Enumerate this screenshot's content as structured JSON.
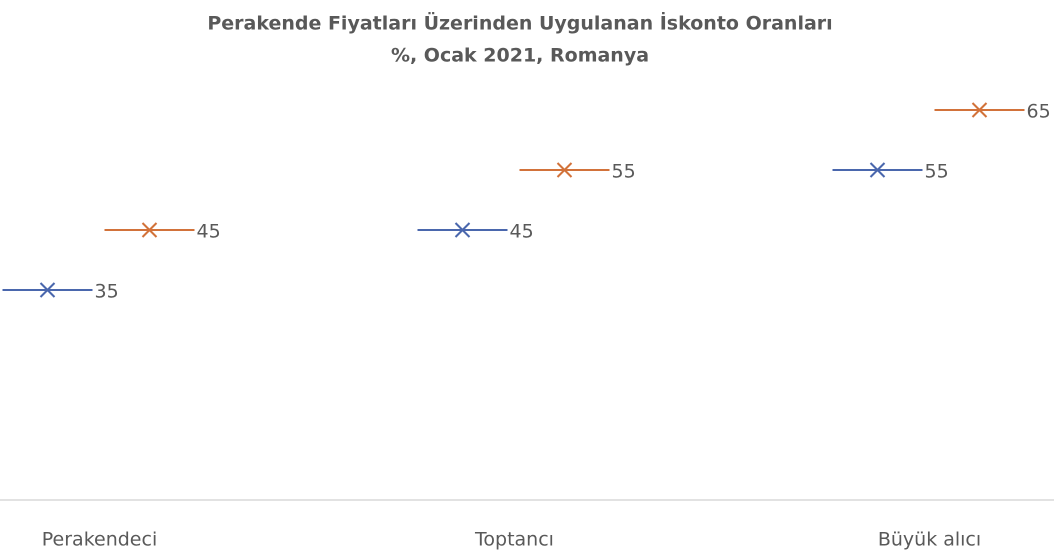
{
  "chart_data": {
    "type": "range-marker",
    "title": "Perakende Fiyatları Üzerinden Uygulanan İskonto Oranları",
    "subtitle": "%, Ocak 2021, Romanya",
    "categories": [
      "Perakendeci",
      "Toptancı",
      "Büyük alıcı"
    ],
    "series": [
      {
        "color": "#4a67ad",
        "values": [
          35,
          45,
          55
        ]
      },
      {
        "color": "#d2723a",
        "values": [
          45,
          55,
          65
        ]
      }
    ],
    "ylim": [
      0,
      70
    ]
  }
}
